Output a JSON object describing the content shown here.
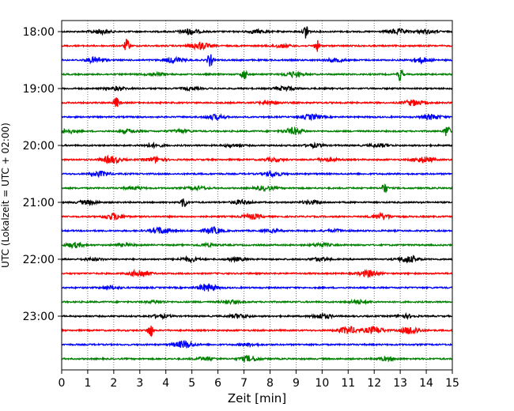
{
  "chart_data": {
    "type": "line",
    "title": "",
    "xlabel": "Zeit  [min]",
    "ylabel": "UTC (Lokalzeit = UTC + 02:00)",
    "xlim": [
      0,
      15
    ],
    "x_ticks": [
      "0",
      "1",
      "2",
      "3",
      "4",
      "5",
      "6",
      "7",
      "8",
      "9",
      "10",
      "11",
      "12",
      "13",
      "14",
      "15"
    ],
    "y_ticks": [
      {
        "label": "18:00",
        "trace": 0
      },
      {
        "label": "19:00",
        "trace": 4
      },
      {
        "label": "20:00",
        "trace": 8
      },
      {
        "label": "21:00",
        "trace": 12
      },
      {
        "label": "22:00",
        "trace": 16
      },
      {
        "label": "23:00",
        "trace": 20
      }
    ],
    "grid": {
      "vertical_dotted": true
    },
    "trace_interval_min": 15,
    "trace_colors": [
      "#000000",
      "#ff0000",
      "#0000ff",
      "#008000"
    ],
    "series": [
      {
        "start": "18:00",
        "bursts": [
          [
            1.5,
            0.5
          ],
          [
            4.9,
            0.7
          ],
          [
            7.5,
            0.4
          ],
          [
            9.4,
            1.6
          ],
          [
            12.9,
            0.6
          ],
          [
            14.0,
            0.4
          ]
        ]
      },
      {
        "start": "18:15",
        "bursts": [
          [
            2.5,
            1.2
          ],
          [
            5.3,
            0.9
          ],
          [
            8.4,
            0.4
          ],
          [
            9.8,
            1.0
          ]
        ]
      },
      {
        "start": "18:30",
        "bursts": [
          [
            1.3,
            0.7
          ],
          [
            4.3,
            0.7
          ],
          [
            5.7,
            1.2
          ],
          [
            10.5,
            0.4
          ],
          [
            13.8,
            0.6
          ]
        ]
      },
      {
        "start": "18:45",
        "bursts": [
          [
            3.6,
            0.4
          ],
          [
            7.0,
            1.0
          ],
          [
            8.9,
            0.6
          ],
          [
            13.0,
            1.2
          ]
        ]
      },
      {
        "start": "19:00",
        "bursts": [
          [
            2.1,
            0.4
          ],
          [
            4.9,
            0.3
          ],
          [
            8.6,
            0.5
          ]
        ]
      },
      {
        "start": "19:15",
        "bursts": [
          [
            2.1,
            1.0
          ],
          [
            8.0,
            0.5
          ],
          [
            13.5,
            0.7
          ]
        ]
      },
      {
        "start": "19:30",
        "bursts": [
          [
            5.9,
            0.6
          ],
          [
            9.6,
            0.6
          ],
          [
            14.2,
            0.6
          ]
        ]
      },
      {
        "start": "19:45",
        "bursts": [
          [
            0.2,
            0.5
          ],
          [
            2.6,
            0.4
          ],
          [
            4.6,
            0.4
          ],
          [
            8.9,
            0.8
          ],
          [
            14.8,
            1.2
          ]
        ]
      },
      {
        "start": "20:00",
        "bursts": [
          [
            3.5,
            0.4
          ],
          [
            6.6,
            0.3
          ],
          [
            9.7,
            0.4
          ],
          [
            12.2,
            0.4
          ]
        ]
      },
      {
        "start": "20:15",
        "bursts": [
          [
            1.9,
            0.9
          ],
          [
            3.6,
            0.6
          ],
          [
            8.1,
            0.4
          ],
          [
            10.2,
            0.4
          ],
          [
            13.9,
            0.7
          ]
        ]
      },
      {
        "start": "20:30",
        "bursts": [
          [
            1.5,
            0.6
          ],
          [
            8.1,
            0.6
          ]
        ]
      },
      {
        "start": "20:45",
        "bursts": [
          [
            2.8,
            0.3
          ],
          [
            5.2,
            0.4
          ],
          [
            7.8,
            0.5
          ],
          [
            12.4,
            1.0
          ]
        ]
      },
      {
        "start": "21:00",
        "bursts": [
          [
            1.0,
            0.5
          ],
          [
            4.7,
            1.1
          ],
          [
            6.9,
            0.5
          ],
          [
            9.6,
            0.4
          ]
        ]
      },
      {
        "start": "21:15",
        "bursts": [
          [
            2.0,
            0.8
          ],
          [
            7.3,
            0.6
          ],
          [
            12.3,
            0.7
          ]
        ]
      },
      {
        "start": "21:30",
        "bursts": [
          [
            3.8,
            0.8
          ],
          [
            5.8,
            0.8
          ],
          [
            8.1,
            0.3
          ],
          [
            10.5,
            0.3
          ]
        ]
      },
      {
        "start": "21:45",
        "bursts": [
          [
            0.5,
            0.6
          ],
          [
            2.4,
            0.3
          ],
          [
            5.6,
            0.3
          ],
          [
            10.0,
            0.4
          ]
        ]
      },
      {
        "start": "22:00",
        "bursts": [
          [
            1.2,
            0.3
          ],
          [
            4.9,
            0.5
          ],
          [
            6.7,
            0.4
          ],
          [
            9.9,
            0.4
          ],
          [
            13.3,
            0.8
          ]
        ]
      },
      {
        "start": "22:15",
        "bursts": [
          [
            3.0,
            0.9
          ],
          [
            11.8,
            0.8
          ]
        ]
      },
      {
        "start": "22:30",
        "bursts": [
          [
            1.9,
            0.4
          ],
          [
            5.6,
            0.9
          ]
        ]
      },
      {
        "start": "22:45",
        "bursts": [
          [
            3.6,
            0.3
          ],
          [
            6.5,
            0.4
          ],
          [
            11.4,
            0.4
          ]
        ]
      },
      {
        "start": "23:00",
        "bursts": [
          [
            3.8,
            0.4
          ],
          [
            6.8,
            0.5
          ],
          [
            10.0,
            0.6
          ],
          [
            13.2,
            0.4
          ]
        ]
      },
      {
        "start": "23:15",
        "bursts": [
          [
            3.4,
            1.3
          ],
          [
            11.0,
            0.9
          ],
          [
            12.0,
            0.9
          ],
          [
            13.4,
            0.9
          ]
        ]
      },
      {
        "start": "23:30",
        "bursts": [
          [
            4.7,
            0.9
          ],
          [
            7.2,
            0.3
          ]
        ]
      },
      {
        "start": "23:45",
        "bursts": [
          [
            5.5,
            0.4
          ],
          [
            7.2,
            0.7
          ],
          [
            12.5,
            0.4
          ]
        ]
      }
    ]
  }
}
